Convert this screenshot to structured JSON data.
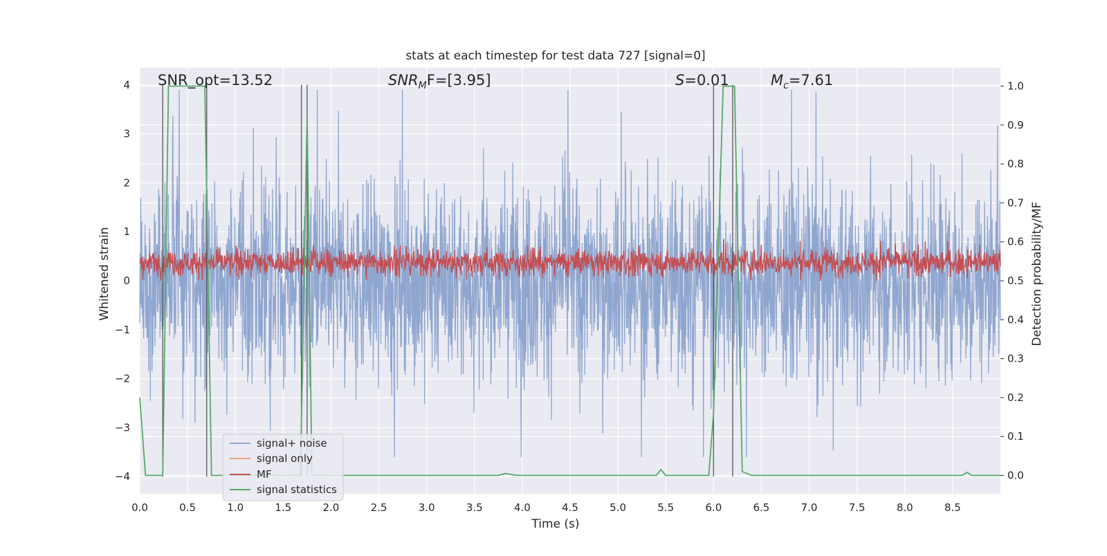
{
  "chart_data": {
    "type": "line",
    "title": "stats at each timestep for test data 727 [signal=0]",
    "xlabel": "Time (s)",
    "ylabel": "Whitened strain",
    "ylabel_right": "Detection probability/MF",
    "xlim": [
      0.0,
      9.0
    ],
    "ylim": [
      -4.35,
      4.35
    ],
    "ylim_right": [
      -0.047,
      1.047
    ],
    "x_ticks": [
      "0.0",
      "0.5",
      "1.0",
      "1.5",
      "2.0",
      "2.5",
      "3.0",
      "3.5",
      "4.0",
      "4.5",
      "5.0",
      "5.5",
      "6.0",
      "6.5",
      "7.0",
      "7.5",
      "8.0",
      "8.5"
    ],
    "x_tick_values": [
      0.0,
      0.5,
      1.0,
      1.5,
      2.0,
      2.5,
      3.0,
      3.5,
      4.0,
      4.5,
      5.0,
      5.5,
      6.0,
      6.5,
      7.0,
      7.5,
      8.0,
      8.5
    ],
    "y_ticks": [
      "−4",
      "−3",
      "−2",
      "−1",
      "0",
      "1",
      "2",
      "3",
      "4"
    ],
    "y_tick_values": [
      -4,
      -3,
      -2,
      -1,
      0,
      1,
      2,
      3,
      4
    ],
    "y_ticks_right": [
      "0.0",
      "0.1",
      "0.2",
      "0.3",
      "0.4",
      "0.5",
      "0.6",
      "0.7",
      "0.8",
      "0.9",
      "1.0"
    ],
    "y_tick_values_right": [
      0.0,
      0.1,
      0.2,
      0.3,
      0.4,
      0.5,
      0.6,
      0.7,
      0.8,
      0.9,
      1.0
    ],
    "grid": true,
    "legend_position": "lower-left",
    "annotations": {
      "snr_opt": "SNR_opt=13.52",
      "snr_mf_label": "SNR",
      "snr_mf_sub": "M",
      "snr_mf_tail": "F=[3.95]",
      "s_label": "S",
      "s_value": "=0.01",
      "mc_label": "M",
      "mc_sub": "c",
      "mc_value": "=7.61"
    },
    "series": [
      {
        "name": "signal+ noise",
        "color": "#8fa6cf",
        "description": "dense whitened strain noise, roughly within −3.5..3.9"
      },
      {
        "name": "signal only",
        "color": "#e8a583",
        "values": []
      },
      {
        "name": "MF",
        "color": "#c44e52",
        "description": "matched-filter output on right axis, ~0.5..0.6"
      },
      {
        "name": "signal statistics",
        "color": "#55a868",
        "x": [
          0.0,
          0.06,
          0.1,
          0.24,
          0.3,
          0.68,
          0.75,
          1.68,
          1.75,
          1.8,
          3.75,
          3.82,
          3.95,
          5.4,
          5.45,
          5.5,
          5.95,
          6.0,
          6.1,
          6.22,
          6.3,
          6.4,
          8.6,
          8.65,
          8.7,
          9.0
        ],
        "values": [
          0.2,
          0.0,
          0.0,
          0.0,
          1.0,
          1.0,
          0.0,
          0.0,
          0.92,
          0.0,
          0.0,
          0.005,
          0.0,
          0.0,
          0.015,
          0.0,
          0.0,
          0.16,
          1.0,
          1.0,
          0.01,
          0.0,
          0.0,
          0.008,
          0.0,
          0.0
        ]
      }
    ],
    "vertical_lines": [
      0.24,
      0.7,
      1.69,
      1.75,
      6.0,
      6.2
    ]
  }
}
